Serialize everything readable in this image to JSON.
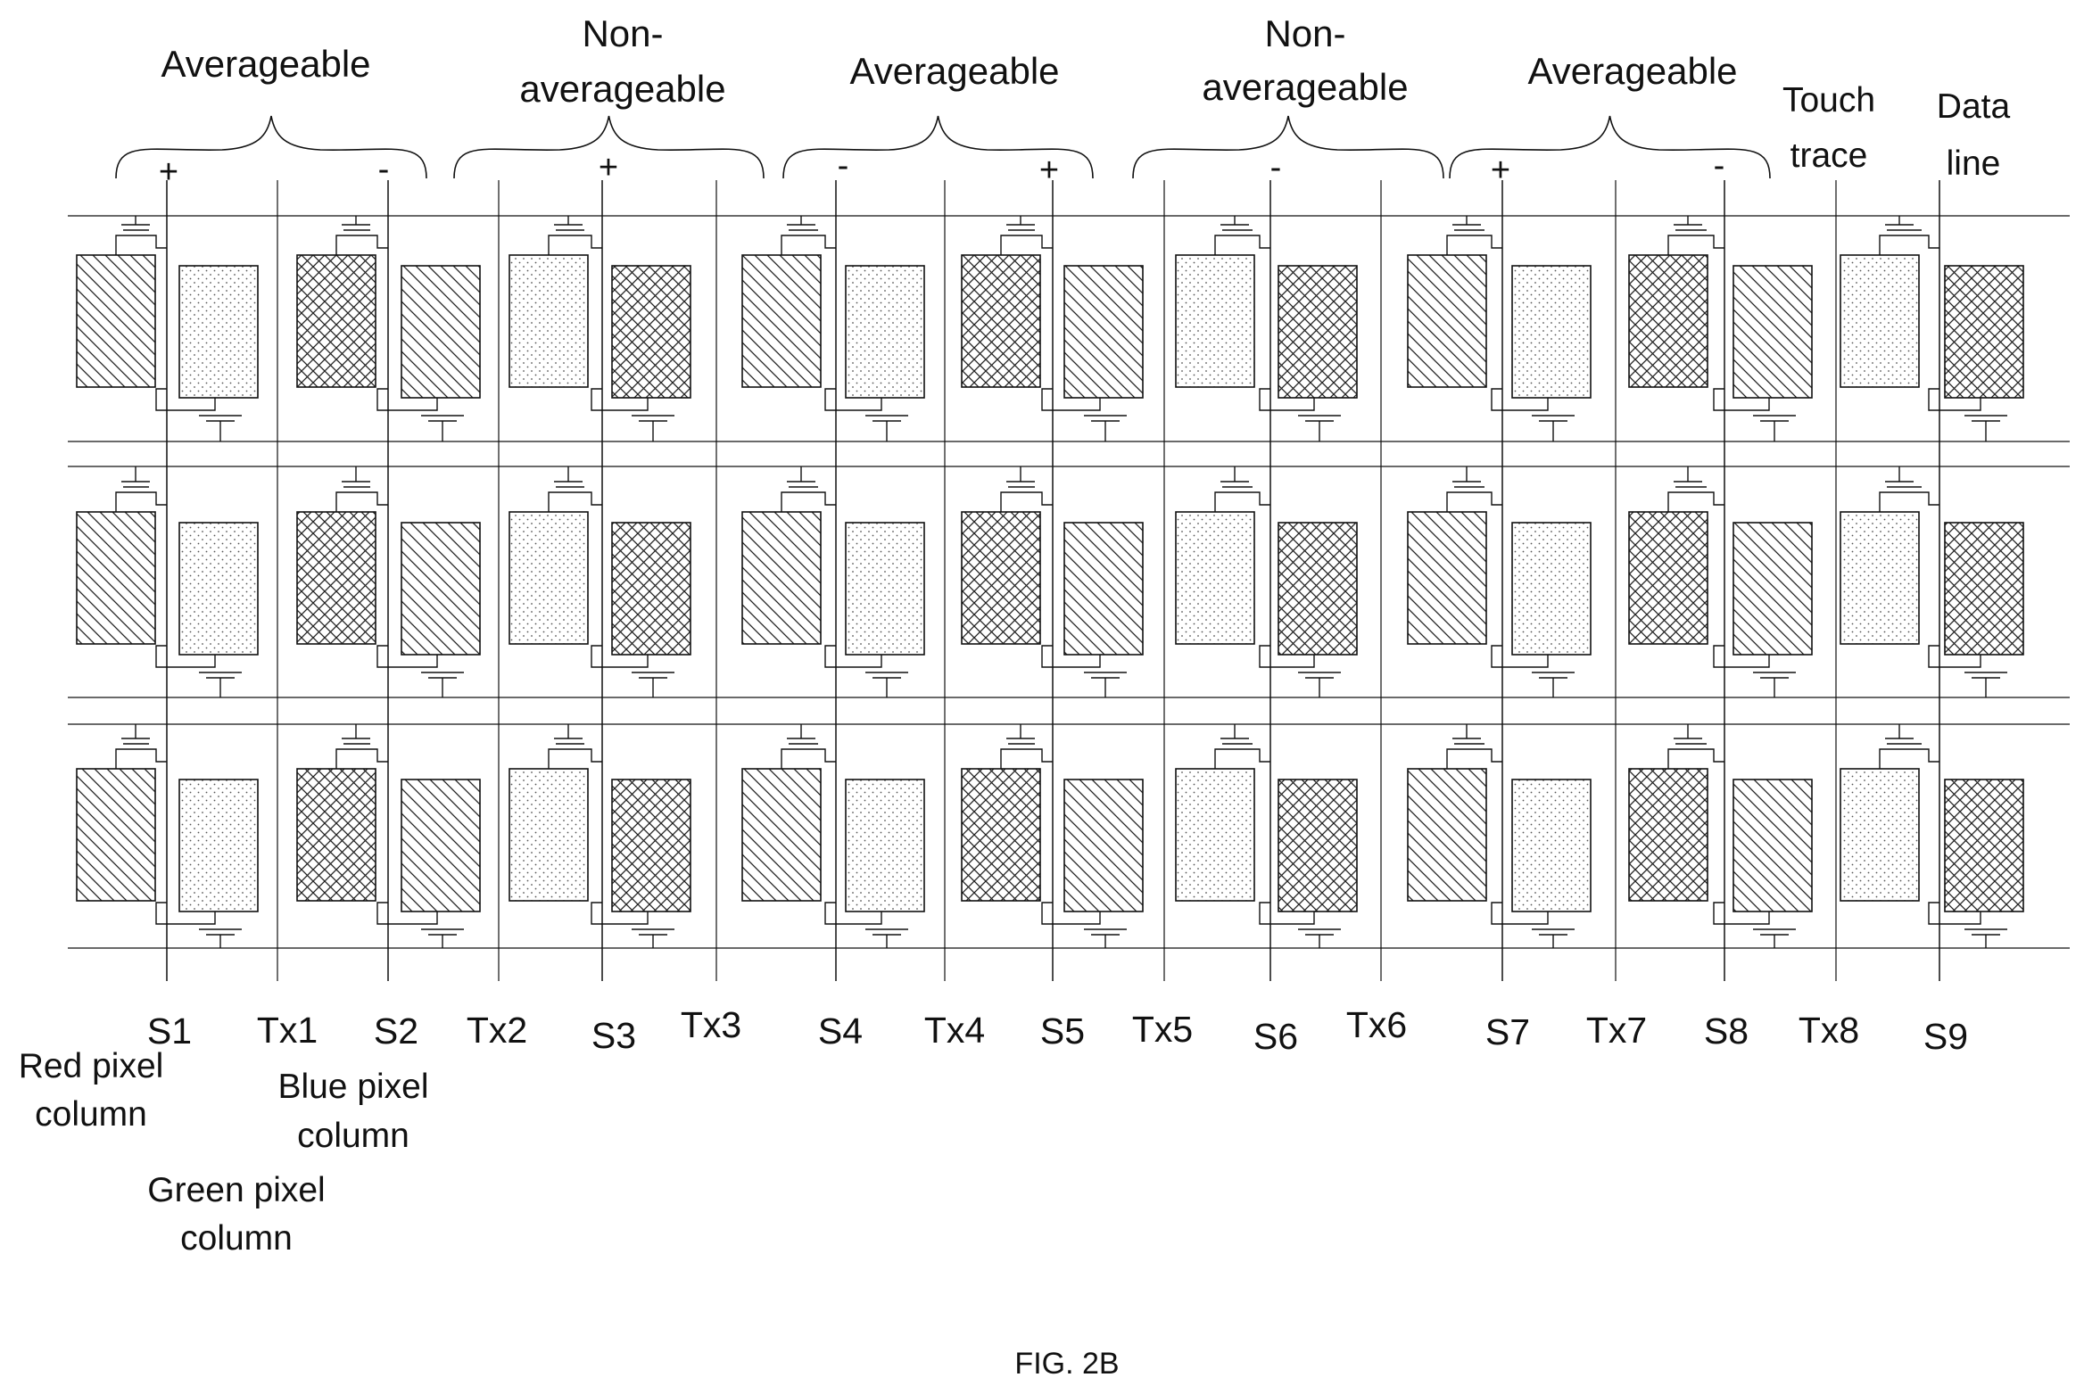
{
  "figure_caption": "FIG. 2B",
  "groups": [
    {
      "lines": [
        "Averageable"
      ],
      "polarity_left": "+",
      "polarity_right": "-"
    },
    {
      "lines": [
        "Non-",
        "averageable"
      ],
      "polarity_center": "+"
    },
    {
      "lines": [
        "Averageable"
      ],
      "polarity_left": "-",
      "polarity_right": "+"
    },
    {
      "lines": [
        "Non-",
        "averageable"
      ],
      "polarity_center": "-"
    },
    {
      "lines": [
        "Averageable"
      ],
      "polarity_left": "+",
      "polarity_right": "-"
    }
  ],
  "legend": {
    "touch_trace": [
      "Touch",
      "trace"
    ],
    "data_line": [
      "Data",
      "line"
    ],
    "red_pixel_column": [
      "Red pixel",
      "column"
    ],
    "blue_pixel_column": [
      "Blue pixel",
      "column"
    ],
    "green_pixel_column": [
      "Green pixel",
      "column"
    ]
  },
  "column_labels": [
    "S1",
    "Tx1",
    "S2",
    "Tx2",
    "S3",
    "Tx3",
    "S4",
    "Tx4",
    "S5",
    "Tx5",
    "S6",
    "Tx6",
    "S7",
    "Tx7",
    "S8",
    "Tx8",
    "S9"
  ],
  "pixel_rows": 3,
  "pixel_pattern": [
    "red",
    "green",
    "blue",
    "red",
    "green",
    "blue",
    "red",
    "green",
    "blue",
    "red",
    "green",
    "blue",
    "red",
    "green",
    "blue",
    "red",
    "green",
    "blue"
  ],
  "pixel_fills": {
    "red": "diagonal-hatch",
    "green": "dotted",
    "blue": "cross-hatch"
  },
  "line_color": "#111111"
}
